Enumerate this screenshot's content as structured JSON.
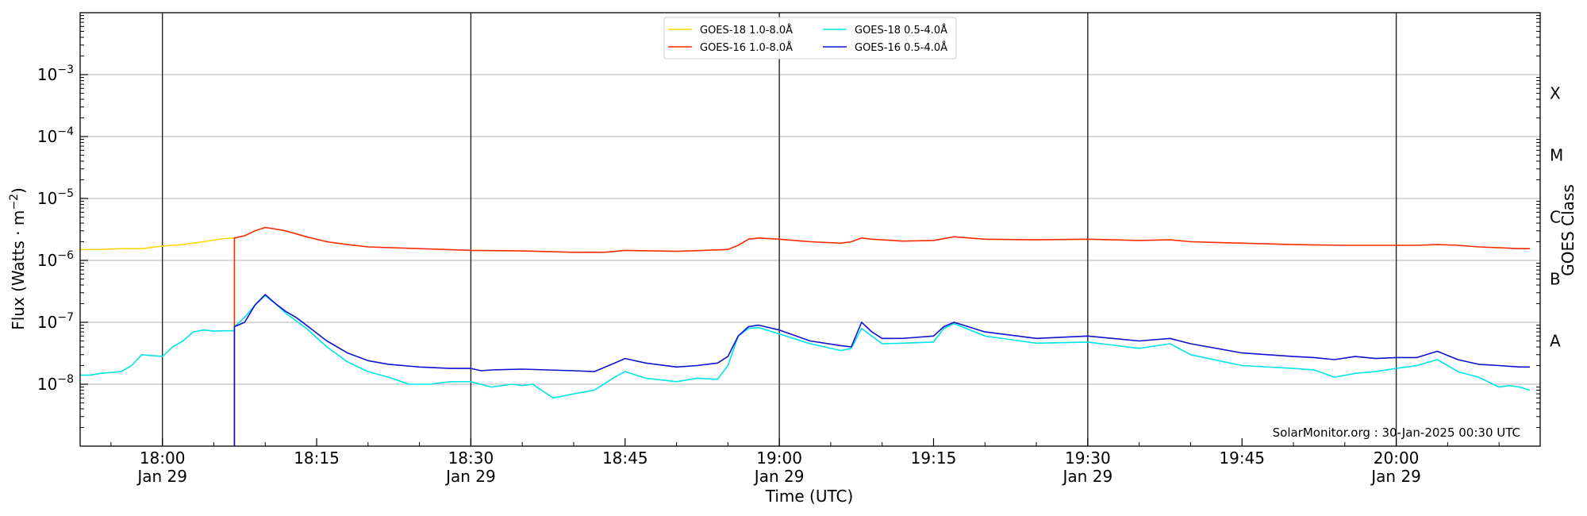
{
  "chart_data": {
    "type": "line",
    "xlabel": "Time (UTC)",
    "ylabel_main": "Flux (Watts · m",
    "ylabel_sup": "−2",
    "ylabel_close": ")",
    "right_label": "GOES Class",
    "credit": "SolarMonitor.org : 30-Jan-2025 00:30 UTC",
    "y_scale": "log",
    "ylim": [
      1e-09,
      0.01
    ],
    "xlim": [
      "17:52",
      "20:14"
    ],
    "grid": "horizontal at decades; vertical lines at half-hours",
    "legend_placement": "top-center",
    "y_ticks": [
      {
        "base": "10",
        "exp": "−8",
        "value": 1e-08
      },
      {
        "base": "10",
        "exp": "−7",
        "value": 1e-07
      },
      {
        "base": "10",
        "exp": "−6",
        "value": 1e-06
      },
      {
        "base": "10",
        "exp": "−5",
        "value": 1e-05
      },
      {
        "base": "10",
        "exp": "−4",
        "value": 0.0001
      },
      {
        "base": "10",
        "exp": "−3",
        "value": 0.001
      }
    ],
    "x_ticks": [
      {
        "time": "18:00",
        "line1": "18:00",
        "line2": "Jan 29",
        "major": true
      },
      {
        "time": "18:15",
        "line1": "18:15",
        "line2": "",
        "major": false
      },
      {
        "time": "18:30",
        "line1": "18:30",
        "line2": "Jan 29",
        "major": true
      },
      {
        "time": "18:45",
        "line1": "18:45",
        "line2": "",
        "major": false
      },
      {
        "time": "19:00",
        "line1": "19:00",
        "line2": "Jan 29",
        "major": true
      },
      {
        "time": "19:15",
        "line1": "19:15",
        "line2": "",
        "major": false
      },
      {
        "time": "19:30",
        "line1": "19:30",
        "line2": "Jan 29",
        "major": true
      },
      {
        "time": "19:45",
        "line1": "19:45",
        "line2": "",
        "major": false
      },
      {
        "time": "20:00",
        "line1": "20:00",
        "line2": "Jan 29",
        "major": true
      }
    ],
    "class_labels": [
      {
        "label": "A",
        "value": 5e-08
      },
      {
        "label": "B",
        "value": 5e-07
      },
      {
        "label": "C",
        "value": 5e-06
      },
      {
        "label": "M",
        "value": 5e-05
      },
      {
        "label": "X",
        "value": 0.0005
      }
    ],
    "series": [
      {
        "name": "GOES-18 1.0-8.0Å",
        "color": "#ffd700",
        "x": [
          "17:52",
          "17:54",
          "17:56",
          "17:58",
          "18:00",
          "18:02",
          "18:04",
          "18:06",
          "18:07"
        ],
        "y": [
          1.5e-06,
          1.5e-06,
          1.55e-06,
          1.55e-06,
          1.7e-06,
          1.8e-06,
          2e-06,
          2.25e-06,
          2.3e-06
        ]
      },
      {
        "name": "GOES-16 1.0-8.0Å",
        "color": "#ff2a00",
        "x": [
          "18:07",
          "18:07",
          "18:08",
          "18:09",
          "18:10",
          "18:11",
          "18:12",
          "18:14",
          "18:16",
          "18:18",
          "18:20",
          "18:25",
          "18:30",
          "18:35",
          "18:40",
          "18:43",
          "18:45",
          "18:50",
          "18:55",
          "18:56",
          "18:57",
          "18:58",
          "19:00",
          "19:03",
          "19:06",
          "19:07",
          "19:08",
          "19:09",
          "19:12",
          "19:15",
          "19:17",
          "19:20",
          "19:25",
          "19:30",
          "19:35",
          "19:38",
          "19:40",
          "19:45",
          "19:50",
          "19:55",
          "20:00",
          "20:02",
          "20:04",
          "20:06",
          "20:08",
          "20:10",
          "20:12",
          "20:13"
        ],
        "y": [
          1e-09,
          2.3e-06,
          2.5e-06,
          3e-06,
          3.4e-06,
          3.2e-06,
          3e-06,
          2.4e-06,
          2e-06,
          1.8e-06,
          1.65e-06,
          1.55e-06,
          1.45e-06,
          1.42e-06,
          1.35e-06,
          1.35e-06,
          1.45e-06,
          1.4e-06,
          1.5e-06,
          1.75e-06,
          2.2e-06,
          2.3e-06,
          2.2e-06,
          2e-06,
          1.9e-06,
          2e-06,
          2.3e-06,
          2.2e-06,
          2.05e-06,
          2.1e-06,
          2.4e-06,
          2.2e-06,
          2.15e-06,
          2.2e-06,
          2.1e-06,
          2.15e-06,
          2e-06,
          1.9e-06,
          1.8e-06,
          1.75e-06,
          1.75e-06,
          1.75e-06,
          1.8e-06,
          1.75e-06,
          1.65e-06,
          1.6e-06,
          1.55e-06,
          1.55e-06
        ]
      },
      {
        "name": "GOES-18 0.5-4.0Å",
        "color": "#00e5e5",
        "x": [
          "17:52",
          "17:53",
          "17:54",
          "17:56",
          "17:57",
          "17:58",
          "18:00",
          "18:01",
          "18:02",
          "18:03",
          "18:04",
          "18:05",
          "18:06",
          "18:07",
          "18:07",
          "18:08",
          "18:09",
          "18:10",
          "18:11",
          "18:12",
          "18:14",
          "18:16",
          "18:18",
          "18:20",
          "18:22",
          "18:24",
          "18:26",
          "18:28",
          "18:30",
          "18:32",
          "18:34",
          "18:35",
          "18:36",
          "18:38",
          "18:40",
          "18:42",
          "18:44",
          "18:45",
          "18:47",
          "18:50",
          "18:52",
          "18:54",
          "18:55",
          "18:56",
          "18:57",
          "18:58",
          "19:00",
          "19:03",
          "19:06",
          "19:07",
          "19:08",
          "19:09",
          "19:10",
          "19:12",
          "19:15",
          "19:16",
          "19:17",
          "19:20",
          "19:25",
          "19:30",
          "19:35",
          "19:38",
          "19:40",
          "19:45",
          "19:50",
          "19:52",
          "19:54",
          "19:56",
          "19:58",
          "20:00",
          "20:02",
          "20:04",
          "20:06",
          "20:08",
          "20:10",
          "20:11",
          "20:12",
          "20:13"
        ],
        "y": [
          1.4e-08,
          1.4e-08,
          1.5e-08,
          1.6e-08,
          2e-08,
          3e-08,
          2.8e-08,
          4e-08,
          5e-08,
          7e-08,
          7.5e-08,
          7.2e-08,
          7.3e-08,
          7.3e-08,
          8.5e-08,
          1.2e-07,
          1.9e-07,
          2.7e-07,
          2e-07,
          1.4e-07,
          8e-08,
          4e-08,
          2.3e-08,
          1.6e-08,
          1.3e-08,
          1e-08,
          1e-08,
          1.1e-08,
          1.1e-08,
          9e-09,
          1e-08,
          9.5e-09,
          1e-08,
          6e-09,
          7e-09,
          8e-09,
          1.3e-08,
          1.6e-08,
          1.25e-08,
          1.1e-08,
          1.25e-08,
          1.2e-08,
          2e-08,
          6e-08,
          8e-08,
          8.2e-08,
          6.5e-08,
          4.5e-08,
          3.5e-08,
          3.8e-08,
          8e-08,
          6e-08,
          4.5e-08,
          4.6e-08,
          4.8e-08,
          8e-08,
          9.5e-08,
          6e-08,
          4.6e-08,
          4.8e-08,
          3.8e-08,
          4.5e-08,
          3e-08,
          2e-08,
          1.8e-08,
          1.7e-08,
          1.3e-08,
          1.5e-08,
          1.6e-08,
          1.8e-08,
          2e-08,
          2.5e-08,
          1.6e-08,
          1.3e-08,
          9e-09,
          9.5e-09,
          9e-09,
          8e-09
        ]
      },
      {
        "name": "GOES-16 0.5-4.0Å",
        "color": "#1010d0",
        "x": [
          "18:07",
          "18:07",
          "18:08",
          "18:09",
          "18:10",
          "18:11",
          "18:12",
          "18:13",
          "18:14",
          "18:16",
          "18:18",
          "18:20",
          "18:22",
          "18:25",
          "18:28",
          "18:30",
          "18:31",
          "18:32",
          "18:35",
          "18:40",
          "18:42",
          "18:44",
          "18:45",
          "18:47",
          "18:50",
          "18:52",
          "18:54",
          "18:55",
          "18:56",
          "18:57",
          "18:58",
          "19:00",
          "19:03",
          "19:06",
          "19:07",
          "19:08",
          "19:09",
          "19:10",
          "19:12",
          "19:15",
          "19:16",
          "19:17",
          "19:20",
          "19:25",
          "19:30",
          "19:35",
          "19:38",
          "19:40",
          "19:45",
          "19:50",
          "19:52",
          "19:54",
          "19:56",
          "19:58",
          "20:00",
          "20:01",
          "20:02",
          "20:04",
          "20:06",
          "20:08",
          "20:10",
          "20:12",
          "20:13"
        ],
        "y": [
          1e-09,
          8.5e-08,
          1e-07,
          1.9e-07,
          2.8e-07,
          2e-07,
          1.5e-07,
          1.2e-07,
          9e-08,
          5e-08,
          3.2e-08,
          2.4e-08,
          2.1e-08,
          1.9e-08,
          1.8e-08,
          1.8e-08,
          1.65e-08,
          1.7e-08,
          1.75e-08,
          1.65e-08,
          1.6e-08,
          2.2e-08,
          2.6e-08,
          2.2e-08,
          1.9e-08,
          2e-08,
          2.2e-08,
          2.8e-08,
          6e-08,
          8.5e-08,
          9e-08,
          7.5e-08,
          5e-08,
          4.2e-08,
          4e-08,
          1e-07,
          7e-08,
          5.5e-08,
          5.5e-08,
          6e-08,
          8.5e-08,
          1e-07,
          7e-08,
          5.5e-08,
          6e-08,
          5e-08,
          5.5e-08,
          4.5e-08,
          3.2e-08,
          2.8e-08,
          2.7e-08,
          2.5e-08,
          2.8e-08,
          2.6e-08,
          2.7e-08,
          2.7e-08,
          2.7e-08,
          3.4e-08,
          2.5e-08,
          2.1e-08,
          2e-08,
          1.9e-08,
          1.9e-08
        ]
      }
    ]
  }
}
